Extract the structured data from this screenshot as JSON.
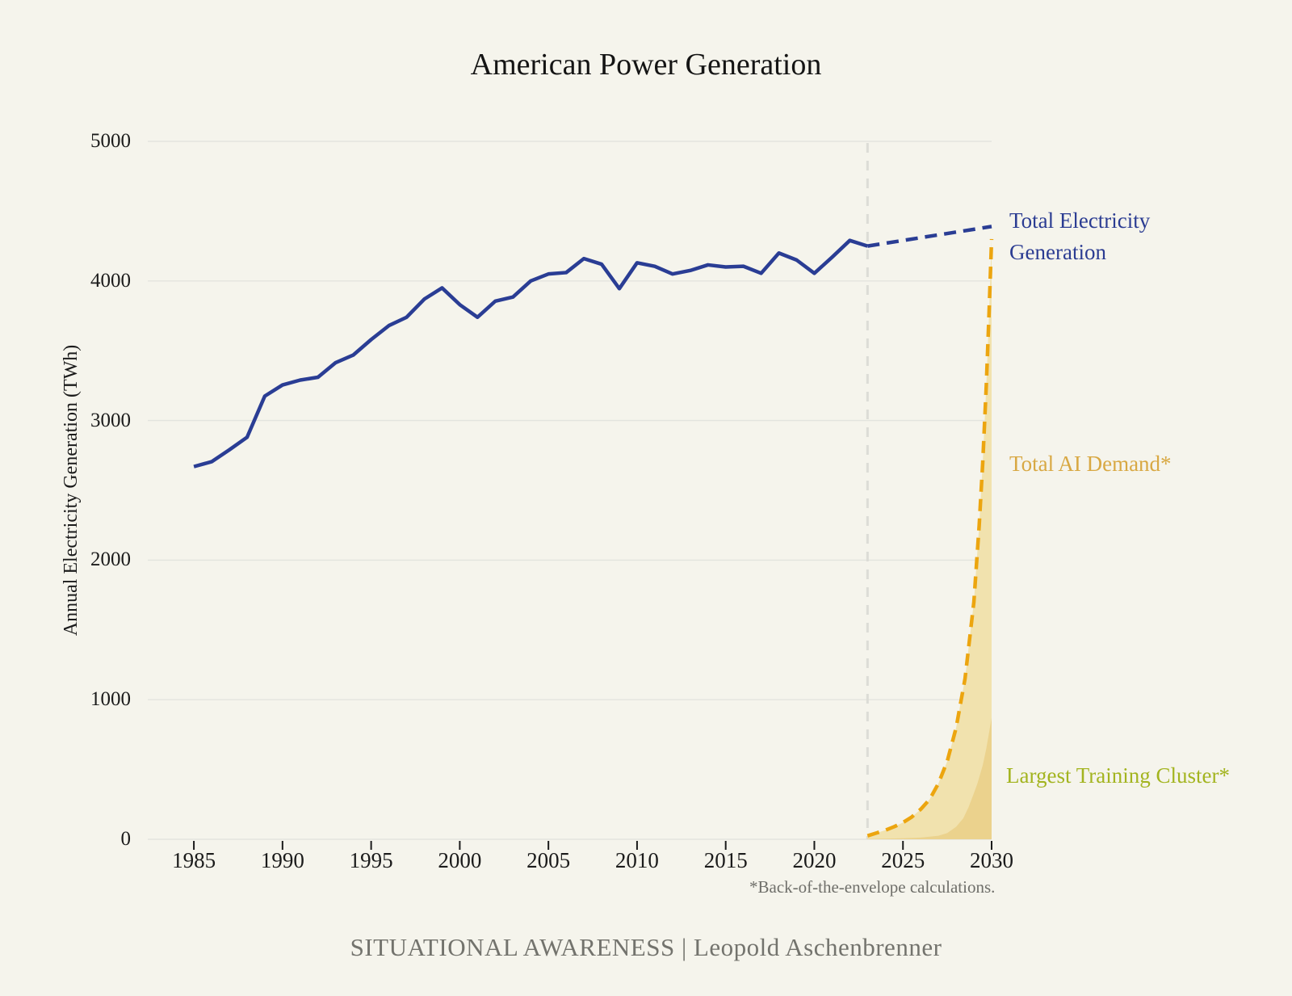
{
  "title": "American Power Generation",
  "y_axis_label": "Annual Electricity Generation (TWh)",
  "labels": {
    "total_electricity_1": "Total Electricity",
    "total_electricity_2": "Generation",
    "total_ai_demand": "Total AI Demand*",
    "largest_training_cluster": "Largest Training Cluster*"
  },
  "footnote": "*Back-of-the-envelope calculations.",
  "caption": "SITUATIONAL AWARENESS | Leopold Aschenbrenner",
  "colors": {
    "background": "#f5f4ec",
    "grid": "#e3e4de",
    "divider": "#dcdcd6",
    "tick": "#1b1b1b",
    "electricity_line": "#2a3d94",
    "ai_demand_line": "#eca50f",
    "ai_demand_fill": "#f1e2ae",
    "cluster_fill": "#ebd28d",
    "ai_demand_label": "#d8a843",
    "cluster_label": "#a3b41f"
  },
  "chart_data": {
    "type": "line",
    "title": "American Power Generation",
    "xlabel": "",
    "ylabel": "Annual Electricity Generation (TWh)",
    "x_ticks": [
      1985,
      1990,
      1995,
      2000,
      2005,
      2010,
      2015,
      2020,
      2025,
      2030
    ],
    "y_ticks": [
      0,
      1000,
      2000,
      3000,
      4000,
      5000
    ],
    "ylim": [
      0,
      5000
    ],
    "x_view": [
      1982.4,
      2030
    ],
    "grid": "horizontal",
    "legend_position": "right-annotations",
    "history_forecast_divider_year": 2023,
    "series": [
      {
        "name": "Total Electricity Generation",
        "style": "solid",
        "color_key": "electricity_line",
        "points": [
          [
            1985,
            2670
          ],
          [
            1986,
            2705
          ],
          [
            1987,
            2790
          ],
          [
            1988,
            2880
          ],
          [
            1989,
            3175
          ],
          [
            1990,
            3255
          ],
          [
            1991,
            3290
          ],
          [
            1992,
            3310
          ],
          [
            1993,
            3415
          ],
          [
            1994,
            3470
          ],
          [
            1995,
            3580
          ],
          [
            1996,
            3680
          ],
          [
            1997,
            3740
          ],
          [
            1998,
            3870
          ],
          [
            1999,
            3950
          ],
          [
            2000,
            3830
          ],
          [
            2001,
            3740
          ],
          [
            2002,
            3855
          ],
          [
            2003,
            3885
          ],
          [
            2004,
            4000
          ],
          [
            2005,
            4050
          ],
          [
            2006,
            4060
          ],
          [
            2007,
            4160
          ],
          [
            2008,
            4120
          ],
          [
            2009,
            3945
          ],
          [
            2010,
            4130
          ],
          [
            2011,
            4105
          ],
          [
            2012,
            4050
          ],
          [
            2013,
            4075
          ],
          [
            2014,
            4115
          ],
          [
            2015,
            4100
          ],
          [
            2016,
            4105
          ],
          [
            2017,
            4055
          ],
          [
            2018,
            4200
          ],
          [
            2019,
            4150
          ],
          [
            2020,
            4055
          ],
          [
            2021,
            4170
          ],
          [
            2022,
            4290
          ],
          [
            2023,
            4250
          ]
        ]
      },
      {
        "name": "Total Electricity Generation (projection)",
        "style": "dashed",
        "color_key": "electricity_line",
        "points": [
          [
            2023,
            4250
          ],
          [
            2030,
            4390
          ]
        ]
      },
      {
        "name": "Total AI Demand (projection)",
        "style": "dashed",
        "color_key": "ai_demand_line",
        "fill_key": "ai_demand_fill",
        "points": [
          [
            2023,
            25
          ],
          [
            2023.5,
            45
          ],
          [
            2024,
            65
          ],
          [
            2024.5,
            90
          ],
          [
            2025,
            120
          ],
          [
            2025.5,
            160
          ],
          [
            2026,
            215
          ],
          [
            2026.5,
            285
          ],
          [
            2027,
            400
          ],
          [
            2027.5,
            560
          ],
          [
            2028,
            800
          ],
          [
            2028.5,
            1150
          ],
          [
            2029,
            1700
          ],
          [
            2029.3,
            2250
          ],
          [
            2029.5,
            2700
          ],
          [
            2029.7,
            3250
          ],
          [
            2029.85,
            3750
          ],
          [
            2030,
            4300
          ]
        ]
      },
      {
        "name": "Largest Training Cluster (projection)",
        "style": "area",
        "fill_key": "cluster_fill",
        "points": [
          [
            2023,
            2
          ],
          [
            2024,
            4
          ],
          [
            2025,
            7
          ],
          [
            2026,
            12
          ],
          [
            2027,
            25
          ],
          [
            2027.5,
            45
          ],
          [
            2028,
            90
          ],
          [
            2028.4,
            150
          ],
          [
            2028.7,
            230
          ],
          [
            2029,
            330
          ],
          [
            2029.2,
            400
          ],
          [
            2029.5,
            530
          ],
          [
            2029.7,
            650
          ],
          [
            2030,
            870
          ]
        ]
      }
    ]
  }
}
